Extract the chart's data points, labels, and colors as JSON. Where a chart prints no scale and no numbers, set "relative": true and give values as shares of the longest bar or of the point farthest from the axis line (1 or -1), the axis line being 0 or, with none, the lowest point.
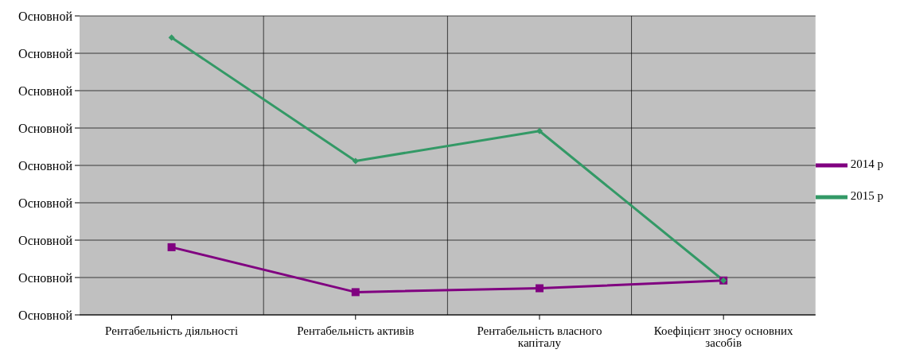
{
  "chart_data": {
    "type": "line",
    "relative": true,
    "categories": [
      "Рентабельність діяльності",
      "Рентабельність активів",
      "Рентабельність власного капіталу",
      "Коефіцієнт зносу основних засобів"
    ],
    "series": [
      {
        "name": "2014 р",
        "color": "#800080",
        "marker": "square",
        "values": [
          0.244,
          0.082,
          0.096,
          0.124
        ]
      },
      {
        "name": "2015 р",
        "color": "#339966",
        "marker": "diamond",
        "values": [
          1,
          0.555,
          0.663,
          0.124
        ]
      }
    ],
    "annotations": [
      "Основной",
      "Основной",
      "Основной",
      "Основной",
      "Основной",
      "Основной",
      "Основной",
      "Основной",
      "Основной"
    ],
    "grid": true,
    "legend": "right",
    "line_style": "solid"
  }
}
